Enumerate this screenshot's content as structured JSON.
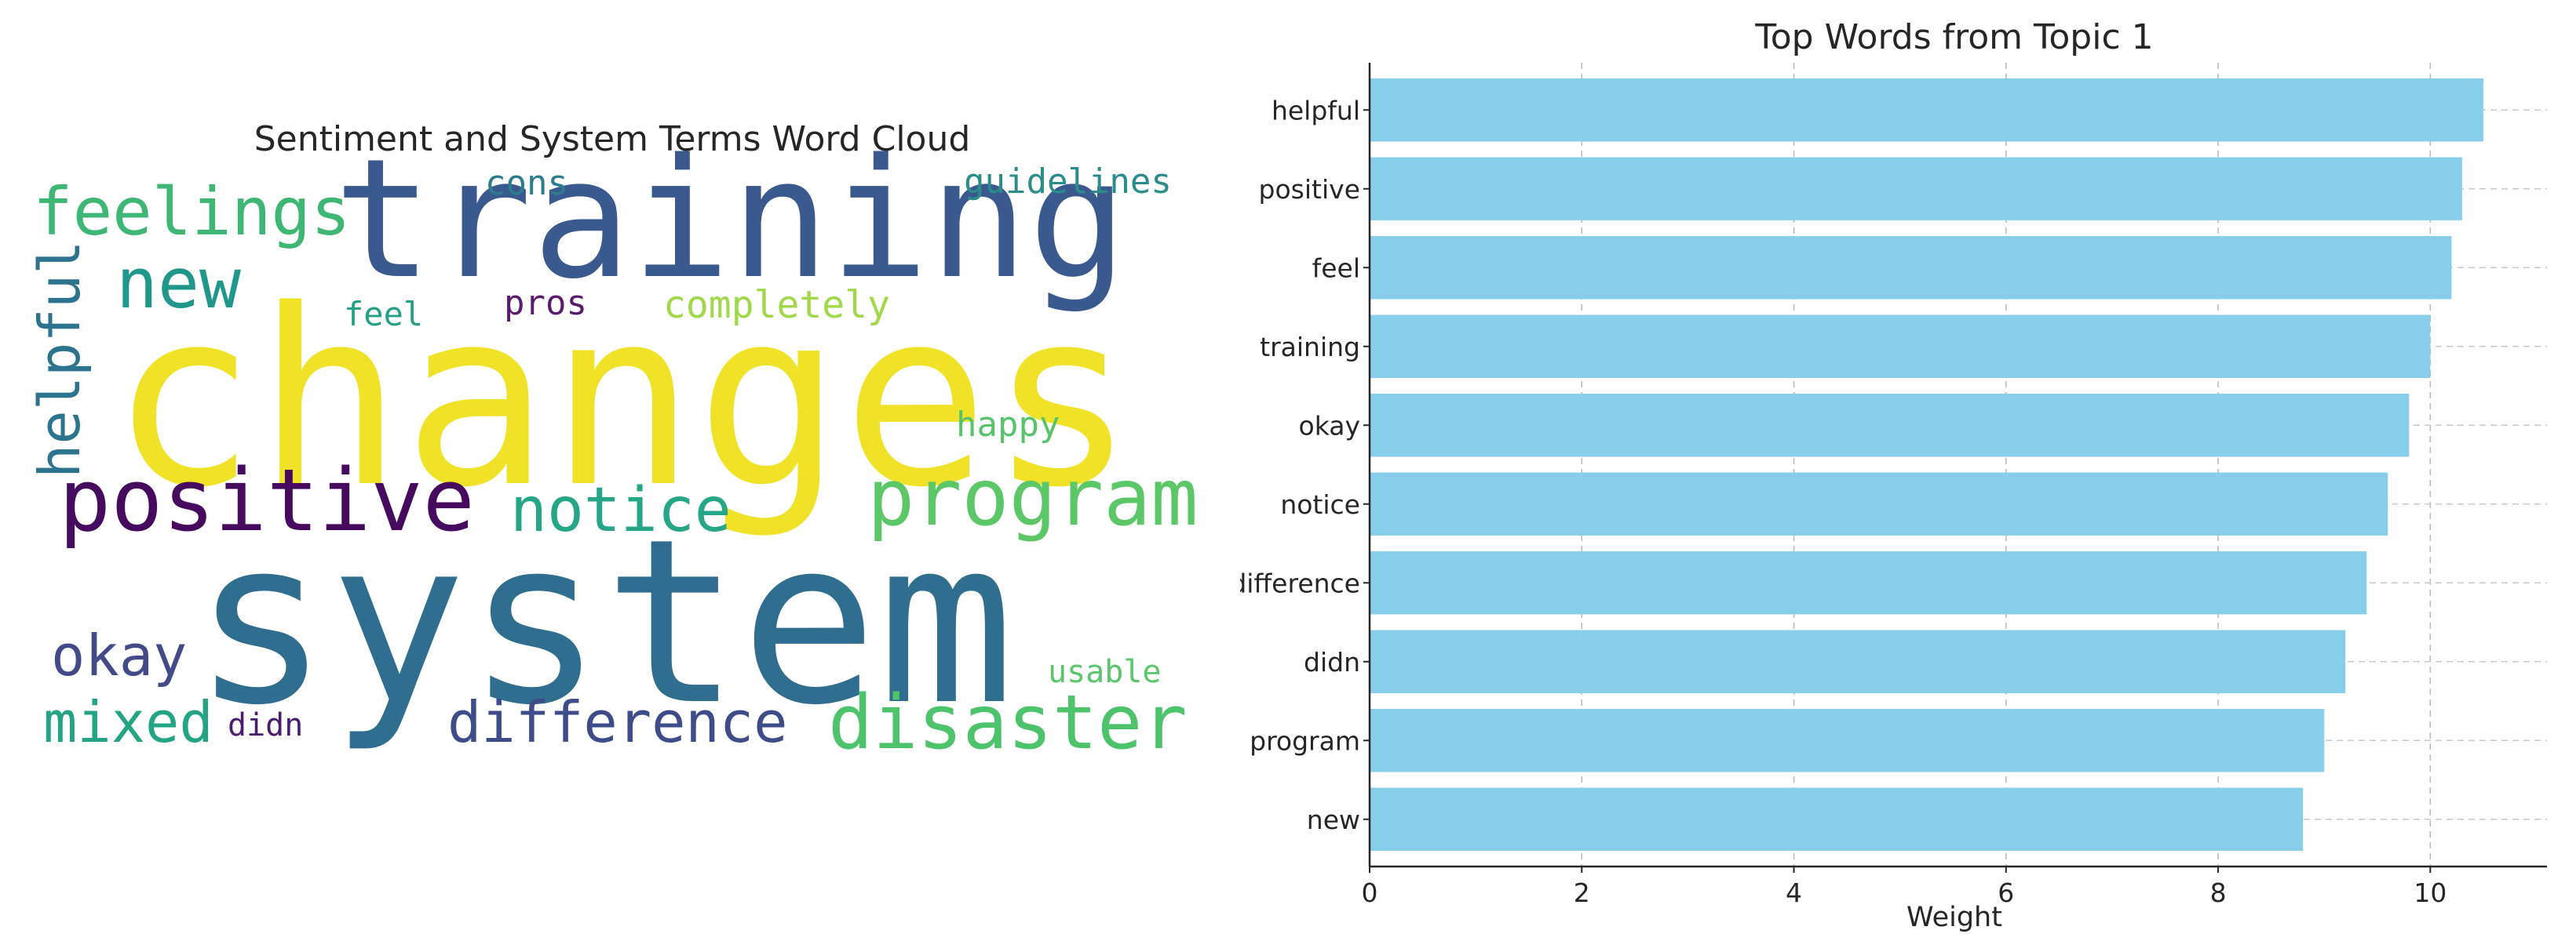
{
  "wordcloud": {
    "title": "Sentiment and System Terms Word Cloud",
    "words": [
      {
        "text": "changes",
        "color": "#f0e327"
      },
      {
        "text": "system",
        "color": "#2f6e8f"
      },
      {
        "text": "training",
        "color": "#3a5a8f"
      },
      {
        "text": "positive",
        "color": "#460b5e"
      },
      {
        "text": "program",
        "color": "#5cc767"
      },
      {
        "text": "disaster",
        "color": "#4dc36c"
      },
      {
        "text": "feelings",
        "color": "#3fb774"
      },
      {
        "text": "new",
        "color": "#1f978b"
      },
      {
        "text": "notice",
        "color": "#25a686"
      },
      {
        "text": "difference",
        "color": "#3f4c8a"
      },
      {
        "text": "helpful",
        "color": "#2b738e"
      },
      {
        "text": "mixed",
        "color": "#23a484"
      },
      {
        "text": "okay",
        "color": "#434a8a"
      },
      {
        "text": "completely",
        "color": "#a0d84a"
      },
      {
        "text": "guidelines",
        "color": "#2a8d8b"
      },
      {
        "text": "cons",
        "color": "#2c7e8e"
      },
      {
        "text": "pros",
        "color": "#5a1b6d"
      },
      {
        "text": "feel",
        "color": "#24a087"
      },
      {
        "text": "happy",
        "color": "#58c46a"
      },
      {
        "text": "usable",
        "color": "#5ac56a"
      },
      {
        "text": "didn",
        "color": "#4b1d6c"
      }
    ]
  },
  "chart_data": {
    "type": "bar",
    "orientation": "horizontal",
    "title": "Top Words from Topic 1",
    "xlabel": "Weight",
    "ylabel": "",
    "categories": [
      "helpful",
      "positive",
      "feel",
      "training",
      "okay",
      "notice",
      "difference",
      "didn",
      "program",
      "new"
    ],
    "values": [
      10.5,
      10.3,
      10.2,
      10.0,
      9.8,
      9.6,
      9.4,
      9.2,
      9.0,
      8.8
    ],
    "xlim": [
      0,
      11.1
    ],
    "xticks": [
      0,
      2,
      4,
      6,
      8,
      10
    ],
    "grid": true,
    "bar_color": "#87ceeb"
  }
}
